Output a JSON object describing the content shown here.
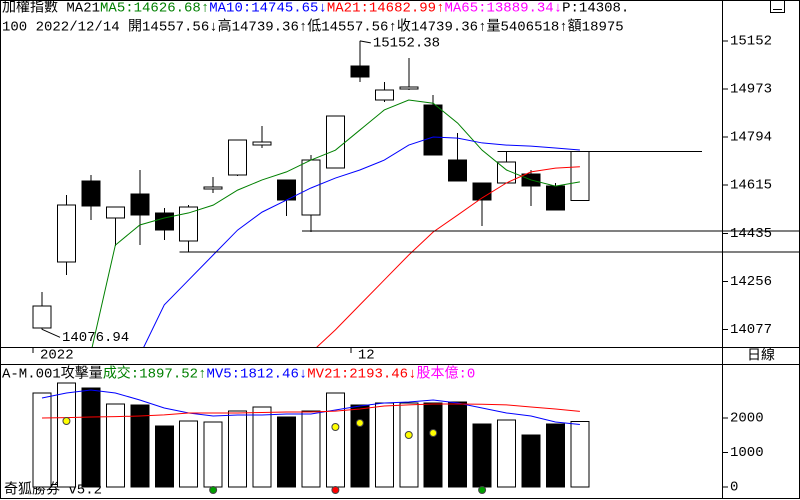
{
  "chart_data": [
    {
      "type": "candlestick",
      "header": [
        [
          {
            "text": "加權指數 MA21 ",
            "color": "#000000"
          },
          {
            "text": "MA5:14626.68↑",
            "color": "#008000"
          },
          {
            "text": "MA10:14745.65↓",
            "color": "#0000ff"
          },
          {
            "text": "MA21:14682.99↑",
            "color": "#ff0000"
          },
          {
            "text": "MA65:13889.34↓",
            "color": "#ff00ff"
          },
          {
            "text": "P:14308.",
            "color": "#000000"
          }
        ],
        [
          {
            "text": "100 2022/12/14 開14557.56↓高14739.36↑低14557.56↑收14739.36↑量5406518↑額18975",
            "color": "#000000"
          }
        ]
      ],
      "categories": [
        "2022",
        null,
        null,
        null,
        null,
        null,
        null,
        null,
        null,
        null,
        null,
        null,
        null,
        "12",
        null,
        null,
        null,
        null,
        null,
        null,
        null,
        null,
        null
      ],
      "open": [
        14082,
        14328,
        14630,
        14492,
        14581,
        14511,
        14406,
        14600,
        14652,
        14764,
        14634,
        14503,
        14678,
        15059,
        14932,
        14973,
        14913,
        14708,
        14623,
        14623,
        14656,
        14611,
        14557.56
      ],
      "high": [
        14216,
        14578,
        14652,
        14533,
        14671,
        14529,
        14540,
        14645,
        14785,
        14835,
        14634,
        14727,
        14872,
        15152.38,
        14999,
        15089,
        14951,
        14809,
        14623,
        14738,
        14671,
        14622,
        14739.36
      ],
      "low": [
        14076.94,
        14280,
        14485,
        14388,
        14391,
        14410,
        14365,
        14585,
        14649,
        14753,
        14500,
        14440,
        14678,
        14999,
        14925,
        14969,
        14727,
        14630,
        14462,
        14623,
        14537,
        14522,
        14557.56
      ],
      "close": [
        14164,
        14540,
        14537,
        14533,
        14503,
        14447,
        14533,
        14608,
        14783,
        14775,
        14559,
        14708,
        14872,
        15018,
        14969,
        14980,
        14727,
        14630,
        14559,
        14701,
        14611,
        14522,
        14739.36
      ],
      "up_color": "#ffffff",
      "down_color": "#000000",
      "series": [
        {
          "name": "MA5",
          "color": "#008000",
          "values": [
            null,
            null,
            13990,
            14391,
            14466,
            14492,
            14511,
            14540,
            14596,
            14634,
            14664,
            14708,
            14745,
            14820,
            14895,
            14932,
            14920,
            14846,
            14745,
            14671,
            14634,
            14611,
            14626.68
          ]
        },
        {
          "name": "MA10",
          "color": "#0000ff",
          "values": [
            null,
            null,
            null,
            null,
            13980,
            14168,
            14261,
            14354,
            14447,
            14514,
            14559,
            14604,
            14641,
            14671,
            14708,
            14764,
            14794,
            14790,
            14772,
            14764,
            14760,
            14753,
            14745.65
          ]
        },
        {
          "name": "MA21",
          "color": "#ff0000",
          "values": [
            null,
            null,
            null,
            null,
            null,
            null,
            null,
            null,
            null,
            null,
            null,
            13990,
            14075,
            14168,
            14261,
            14354,
            14440,
            14503,
            14567,
            14623,
            14664,
            14678,
            14682.99
          ]
        }
      ],
      "hlines": [
        {
          "value": 14739.36,
          "from": 19,
          "to": 27
        },
        {
          "value": 14444,
          "from": 11
        },
        {
          "value": 14365,
          "from": 6
        }
      ],
      "annotations": [
        {
          "index": 13,
          "text": "15152.38"
        },
        {
          "index": 0,
          "text": "14076.94"
        }
      ],
      "ylim": [
        14011,
        15305
      ],
      "yticks": [
        15152,
        14973,
        14794,
        14615,
        14435,
        14256,
        14077
      ],
      "period_label": "日線"
    },
    {
      "type": "bar",
      "header": [
        [
          {
            "text": "A-M.001攻擊量 ",
            "color": "#000000"
          },
          {
            "text": "成交:1897.52↑",
            "color": "#008000"
          },
          {
            "text": "MV5:1812.46↓",
            "color": "#0000ff"
          },
          {
            "text": "MV21:2193.46↓",
            "color": "#ff0000"
          },
          {
            "text": "股本億:0",
            "color": "#ff00ff"
          }
        ]
      ],
      "values": [
        2725,
        3014,
        2870,
        2406,
        2377,
        1768,
        1913,
        1884,
        2203,
        2319,
        2029,
        2203,
        2725,
        2377,
        2435,
        2435,
        2435,
        2464,
        1826,
        1942,
        1507,
        1826,
        1897.52
      ],
      "series": [
        {
          "name": "MV5",
          "color": "#0000ff",
          "values": [
            2580,
            2725,
            2812,
            2725,
            2522,
            2290,
            2145,
            2058,
            2087,
            2087,
            2116,
            2116,
            2232,
            2348,
            2435,
            2464,
            2522,
            2435,
            2290,
            2145,
            2058,
            1884,
            1812.46
          ]
        },
        {
          "name": "MV21",
          "color": "#ff0000",
          "values": [
            2000,
            2010,
            2030,
            2040,
            2058,
            2090,
            2145,
            2145,
            2145,
            2160,
            2174,
            2174,
            2200,
            2260,
            2348,
            2380,
            2406,
            2406,
            2400,
            2380,
            2319,
            2260,
            2193.46
          ]
        }
      ],
      "dots": [
        {
          "index": 1,
          "value": 1913,
          "color": "#ffff00"
        },
        {
          "index": 12,
          "value": 1739,
          "color": "#ffff00"
        },
        {
          "index": 13,
          "value": 1855,
          "color": "#ffff00"
        },
        {
          "index": 15,
          "value": 1507,
          "color": "#ffff00"
        },
        {
          "index": 16,
          "value": 1565,
          "color": "#ffff00"
        },
        {
          "index": 7,
          "value": -87,
          "color": "#00a000"
        },
        {
          "index": 12,
          "value": -87,
          "color": "#ff0000"
        },
        {
          "index": 18,
          "value": -87,
          "color": "#00a000"
        }
      ],
      "ylim": [
        -232,
        3536
      ],
      "yticks": [
        2000,
        1000,
        0
      ],
      "footer": "奇狐勝券 v5.2"
    }
  ]
}
